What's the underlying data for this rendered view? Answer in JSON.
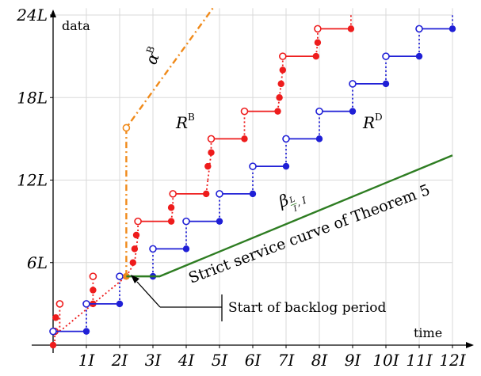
{
  "chart_data": {
    "type": "step",
    "x_axis": {
      "label": "time",
      "min": 0,
      "max": 12,
      "tick_values": [
        1,
        2,
        3,
        4,
        5,
        6,
        7,
        8,
        9,
        10,
        11,
        12
      ],
      "tick_labels": [
        "1I",
        "2I",
        "3I",
        "4I",
        "5I",
        "6I",
        "7I",
        "8I",
        "9I",
        "10I",
        "11I",
        "12I"
      ]
    },
    "y_axis": {
      "label": "data",
      "min": 0,
      "max": 24,
      "tick_values": [
        6,
        12,
        18,
        24
      ],
      "tick_labels": [
        "6L",
        "12L",
        "18L",
        "24L"
      ]
    },
    "grid": true,
    "series": [
      {
        "name": "R^B",
        "color": "#ee1c1c",
        "steps": [
          [
            0.05,
            0,
            0.05,
            1
          ],
          [
            0.2,
            1,
            0.2,
            3
          ],
          [
            0.2,
            1,
            1.2,
            3
          ],
          [
            1.2,
            3,
            1.2,
            5
          ],
          [
            1.2,
            3,
            2.2,
            5
          ],
          [
            2.2,
            5,
            2.45,
            6
          ],
          [
            2.45,
            6,
            2.55,
            8
          ],
          [
            2.55,
            8,
            2.55,
            9
          ],
          [
            2.55,
            9,
            3.55,
            9
          ],
          [
            3.55,
            9,
            3.6,
            10
          ],
          [
            3.6,
            10,
            3.6,
            11
          ],
          [
            3.6,
            11,
            4.6,
            11
          ],
          [
            4.6,
            11,
            4.65,
            12
          ],
          [
            4.65,
            12,
            4.75,
            14
          ],
          [
            4.75,
            14,
            4.75,
            15
          ],
          [
            4.75,
            15,
            5.75,
            15
          ],
          [
            5.75,
            15,
            5.75,
            17
          ],
          [
            5.75,
            17,
            6.75,
            17
          ],
          [
            6.75,
            17,
            6.8,
            18
          ],
          [
            6.8,
            18,
            6.9,
            20
          ],
          [
            6.9,
            20,
            6.9,
            21
          ],
          [
            6.9,
            21,
            7.9,
            21
          ],
          [
            7.9,
            21,
            7.95,
            22
          ],
          [
            7.95,
            22,
            7.95,
            23
          ],
          [
            7.95,
            23,
            8.95,
            23
          ],
          [
            8.95,
            23,
            8.95,
            24
          ]
        ],
        "points_filled": [
          [
            0,
            0
          ],
          [
            0.08,
            2
          ],
          [
            0.2,
            3
          ],
          [
            1.2,
            3
          ],
          [
            1.2,
            4
          ],
          [
            1.2,
            5
          ],
          [
            2.2,
            5
          ],
          [
            2.4,
            6
          ],
          [
            2.45,
            7
          ],
          [
            2.5,
            8
          ],
          [
            2.55,
            9
          ],
          [
            3.55,
            9
          ],
          [
            3.55,
            10
          ],
          [
            4.6,
            11
          ],
          [
            4.65,
            13
          ],
          [
            4.75,
            14
          ],
          [
            5.75,
            15
          ],
          [
            6.75,
            17
          ],
          [
            6.8,
            18
          ],
          [
            6.85,
            19
          ],
          [
            6.9,
            20
          ],
          [
            7.9,
            21
          ],
          [
            7.95,
            22
          ],
          [
            8.95,
            23
          ]
        ],
        "points_open": [
          [
            0.05,
            1
          ],
          [
            0.2,
            3
          ],
          [
            1.2,
            5
          ],
          [
            2.55,
            9
          ],
          [
            3.6,
            11
          ],
          [
            4.75,
            15
          ],
          [
            5.75,
            17
          ],
          [
            6.9,
            21
          ],
          [
            7.95,
            23
          ]
        ]
      },
      {
        "name": "R^D",
        "color": "#1f1fd6",
        "steps": [
          [
            0,
            1,
            1,
            1
          ],
          [
            1,
            1,
            1,
            3
          ],
          [
            1,
            3,
            2,
            3
          ],
          [
            2,
            3,
            2,
            5
          ],
          [
            2,
            5,
            3,
            5
          ],
          [
            3,
            5,
            3,
            7
          ],
          [
            3,
            7,
            4,
            7
          ],
          [
            4,
            7,
            4,
            9
          ],
          [
            4,
            9,
            5,
            9
          ],
          [
            5,
            9,
            5,
            11
          ],
          [
            5,
            11,
            6,
            11
          ],
          [
            6,
            11,
            6,
            13
          ],
          [
            6,
            13,
            7,
            13
          ],
          [
            7,
            13,
            7,
            15
          ],
          [
            7,
            15,
            8,
            15
          ],
          [
            8,
            15,
            8,
            17
          ],
          [
            8,
            17,
            9,
            17
          ],
          [
            9,
            17,
            9,
            19
          ],
          [
            9,
            19,
            10,
            19
          ],
          [
            10,
            19,
            10,
            21
          ],
          [
            10,
            21,
            11,
            21
          ],
          [
            11,
            21,
            11,
            23
          ],
          [
            11,
            23,
            12,
            23
          ],
          [
            12,
            23,
            12,
            24
          ]
        ],
        "points_filled": [
          [
            1,
            1
          ],
          [
            2,
            3
          ],
          [
            3,
            5
          ],
          [
            4,
            7
          ],
          [
            5,
            9
          ],
          [
            6,
            11
          ],
          [
            7,
            13
          ],
          [
            8,
            15
          ],
          [
            9,
            17
          ],
          [
            10,
            19
          ],
          [
            11,
            21
          ],
          [
            12,
            23
          ]
        ],
        "points_open": [
          [
            0,
            1
          ],
          [
            1,
            3
          ],
          [
            2,
            5
          ],
          [
            3,
            7
          ],
          [
            4,
            9
          ],
          [
            5,
            11
          ],
          [
            6,
            13
          ],
          [
            7,
            15
          ],
          [
            8,
            17
          ],
          [
            9,
            19
          ],
          [
            10,
            21
          ],
          [
            11,
            23
          ]
        ]
      },
      {
        "name": "α^B",
        "color": "#f08a1a",
        "line": [
          [
            2.2,
            5
          ],
          [
            2.2,
            15.8
          ],
          [
            4.8,
            24.5
          ]
        ],
        "points_open": [
          [
            2.2,
            15.8
          ]
        ],
        "points_filled": [
          [
            2.2,
            5
          ]
        ]
      },
      {
        "name": "β_{L/I, I}",
        "color": "#2e7d22",
        "line": [
          [
            2.2,
            5
          ],
          [
            3.2,
            5
          ],
          [
            12,
            13.8
          ]
        ]
      }
    ],
    "annotations": {
      "service_curve_label": "Strict service curve of Theorem 5",
      "start_backlog_label": "Start of backlog period",
      "RB_label": "R",
      "RB_sup": "B",
      "RD_label": "R",
      "RD_sup": "D",
      "alpha_label": "α",
      "alpha_sup": "B",
      "beta_label": "β",
      "beta_sub_num": "L",
      "beta_sub_den": "I",
      "beta_sub_rest": ", I"
    }
  }
}
